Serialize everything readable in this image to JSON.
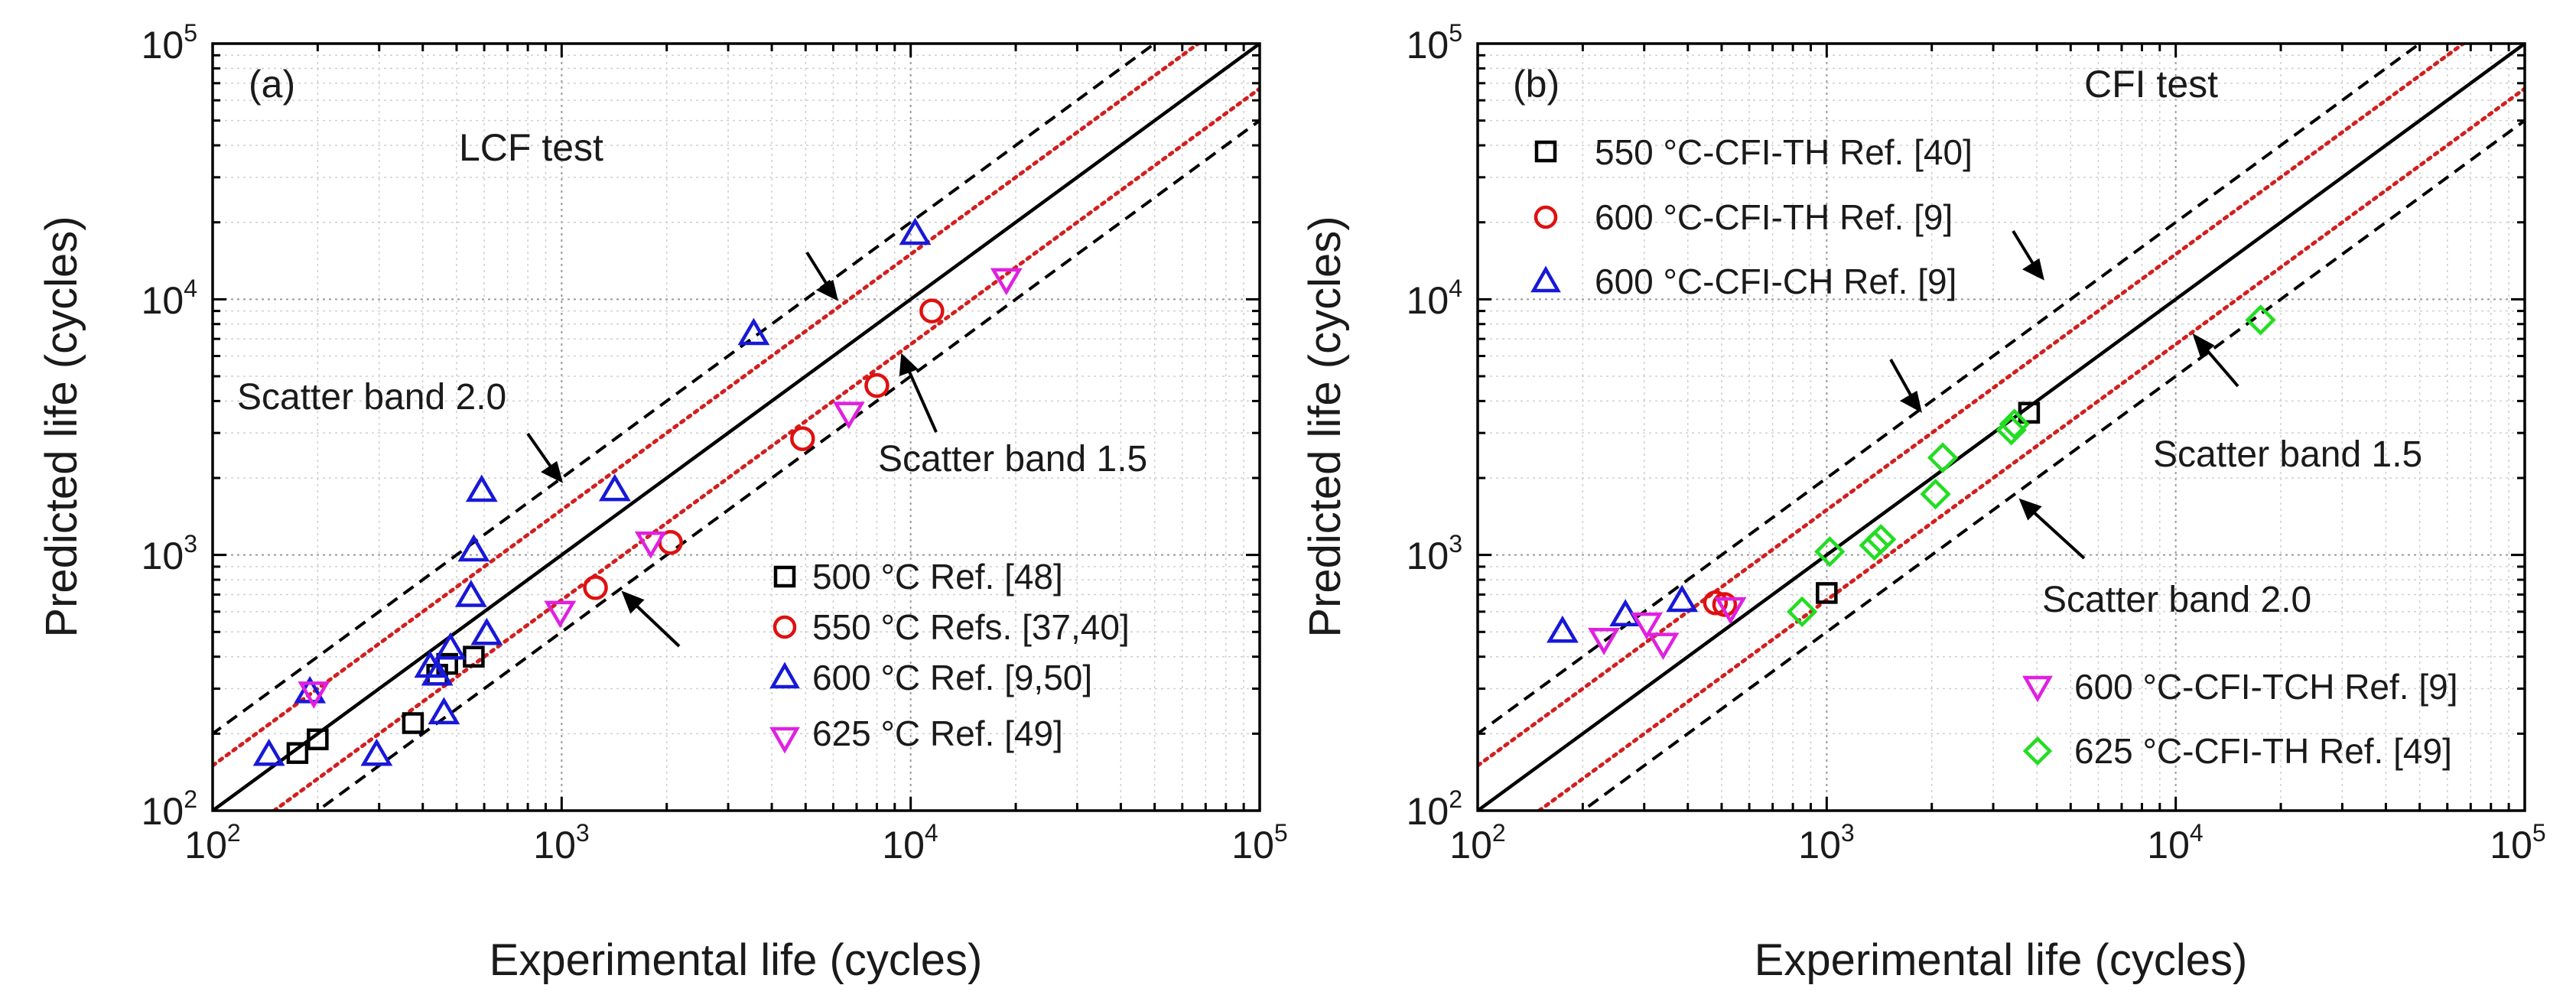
{
  "chart_data": [
    {
      "type": "scatter",
      "scale": "log-log",
      "panel_label": "(a)",
      "title": "LCF test",
      "xlabel": "Experimental life (cycles)",
      "ylabel": "Predicted life (cycles)",
      "xlim": [
        100,
        100000
      ],
      "ylim": [
        100,
        100000
      ],
      "grid": true,
      "ticks": [
        {
          "value": 100,
          "base": "10",
          "exp": "2"
        },
        {
          "value": 1000,
          "base": "10",
          "exp": "3"
        },
        {
          "value": 10000,
          "base": "10",
          "exp": "4"
        },
        {
          "value": 100000,
          "base": "10",
          "exp": "5"
        }
      ],
      "reference_lines": [
        {
          "factor": 1,
          "style": "solid",
          "color": "#000000"
        },
        {
          "factor": 1.5,
          "style": "dotted",
          "color": "#d21f1f"
        },
        {
          "factor": 0.6667,
          "style": "dotted",
          "color": "#d21f1f"
        },
        {
          "factor": 2,
          "style": "dashed",
          "color": "#000000"
        },
        {
          "factor": 0.5,
          "style": "dashed",
          "color": "#000000"
        }
      ],
      "band_labels": [
        {
          "text": "Scatter band 2.0"
        },
        {
          "text": "Scatter band 1.5"
        }
      ],
      "legend_position": "bottom-right",
      "series": [
        {
          "name": "500 °C Ref. [48]",
          "marker": "square",
          "color": "#000000",
          "points": [
            [
              175,
              168
            ],
            [
              200,
              190
            ],
            [
              375,
              220
            ],
            [
              440,
              340
            ],
            [
              470,
              375
            ],
            [
              560,
              400
            ]
          ]
        },
        {
          "name": "550 °C Refs. [37,40]",
          "marker": "circle",
          "color": "#e01010",
          "points": [
            [
              1250,
              745
            ],
            [
              2050,
              1120
            ],
            [
              4900,
              2850
            ],
            [
              8000,
              4600
            ],
            [
              11500,
              9000
            ]
          ]
        },
        {
          "name": "600 °C Ref. [9,50]",
          "marker": "triangle-up",
          "color": "#1818d8",
          "points": [
            [
              145,
              165
            ],
            [
              190,
              290
            ],
            [
              295,
              165
            ],
            [
              420,
              365
            ],
            [
              440,
              340
            ],
            [
              460,
              240
            ],
            [
              480,
              430
            ],
            [
              550,
              690
            ],
            [
              560,
              1040
            ],
            [
              590,
              1780
            ],
            [
              610,
              490
            ],
            [
              1420,
              1790
            ],
            [
              3550,
              7300
            ],
            [
              10300,
              18000
            ]
          ]
        },
        {
          "name": "625 °C Ref. [49]",
          "marker": "triangle-down",
          "color": "#e020e0",
          "points": [
            [
              195,
              290
            ],
            [
              990,
              600
            ],
            [
              1800,
              1120
            ],
            [
              6650,
              3600
            ],
            [
              18800,
              12000
            ]
          ]
        }
      ]
    },
    {
      "type": "scatter",
      "scale": "log-log",
      "panel_label": "(b)",
      "title": "CFI test",
      "xlabel": "Experimental life (cycles)",
      "ylabel": "Predicted life (cycles)",
      "xlim": [
        100,
        100000
      ],
      "ylim": [
        100,
        100000
      ],
      "grid": true,
      "ticks": [
        {
          "value": 100,
          "base": "10",
          "exp": "2"
        },
        {
          "value": 1000,
          "base": "10",
          "exp": "3"
        },
        {
          "value": 10000,
          "base": "10",
          "exp": "4"
        },
        {
          "value": 100000,
          "base": "10",
          "exp": "5"
        }
      ],
      "reference_lines": [
        {
          "factor": 1,
          "style": "solid",
          "color": "#000000"
        },
        {
          "factor": 1.5,
          "style": "dotted",
          "color": "#d21f1f"
        },
        {
          "factor": 0.6667,
          "style": "dotted",
          "color": "#d21f1f"
        },
        {
          "factor": 2,
          "style": "dashed",
          "color": "#000000"
        },
        {
          "factor": 0.5,
          "style": "dashed",
          "color": "#000000"
        }
      ],
      "band_labels": [
        {
          "text": "Scatter band 1.5"
        },
        {
          "text": "Scatter band 2.0"
        }
      ],
      "legend_position": "top-left and bottom-right",
      "series": [
        {
          "name": "550 °C-CFI-TH Ref. [40]",
          "marker": "square",
          "color": "#000000",
          "points": [
            [
              1000,
              710
            ],
            [
              3800,
              3600
            ]
          ]
        },
        {
          "name": "600 °C-CFI-TH Ref. [9]",
          "marker": "circle",
          "color": "#e01010",
          "points": [
            [
              480,
              650
            ],
            [
              510,
              640
            ]
          ]
        },
        {
          "name": "600 °C-CFI-CH Ref. [9]",
          "marker": "triangle-up",
          "color": "#1818d8",
          "points": [
            [
              175,
              500
            ],
            [
              265,
              580
            ],
            [
              385,
              660
            ]
          ]
        },
        {
          "name": "600 °C-CFI-TCH Ref. [9]",
          "marker": "triangle-down",
          "color": "#e020e0",
          "points": [
            [
              230,
              470
            ],
            [
              305,
              540
            ],
            [
              340,
              450
            ],
            [
              530,
              620
            ]
          ]
        },
        {
          "name": "625 °C-CFI-TH Ref. [49]",
          "marker": "diamond",
          "color": "#22dd22",
          "points": [
            [
              850,
              600
            ],
            [
              1020,
              1030
            ],
            [
              1370,
              1090
            ],
            [
              1430,
              1150
            ],
            [
              2050,
              1730
            ],
            [
              2150,
              2400
            ],
            [
              3380,
              3080
            ],
            [
              3450,
              3250
            ],
            [
              17500,
              8300
            ]
          ]
        }
      ]
    }
  ]
}
